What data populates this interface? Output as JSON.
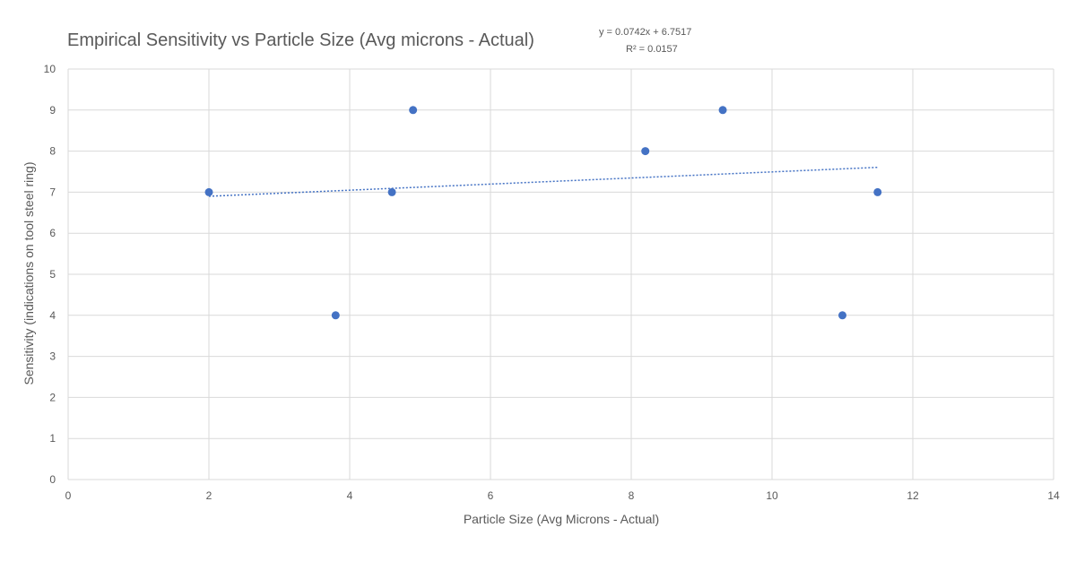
{
  "chart_data": {
    "type": "scatter",
    "title": "Empirical Sensitivity vs Particle Size (Avg microns - Actual)",
    "xlabel": "Particle Size (Avg Microns - Actual)",
    "ylabel": "Sensitivity (indications on tool steel ring)",
    "xlim": [
      0,
      14
    ],
    "ylim": [
      0,
      10
    ],
    "x_ticks": [
      0,
      2,
      4,
      6,
      8,
      10,
      12,
      14
    ],
    "y_ticks": [
      0,
      1,
      2,
      3,
      4,
      5,
      6,
      7,
      8,
      9,
      10
    ],
    "grid": true,
    "point_color": "#4472c4",
    "points": [
      {
        "x": 2.0,
        "y": 7
      },
      {
        "x": 3.8,
        "y": 4
      },
      {
        "x": 4.6,
        "y": 7
      },
      {
        "x": 4.9,
        "y": 9
      },
      {
        "x": 8.2,
        "y": 8
      },
      {
        "x": 9.3,
        "y": 9
      },
      {
        "x": 11.0,
        "y": 4
      },
      {
        "x": 11.5,
        "y": 7
      }
    ],
    "trendline": {
      "slope": 0.0742,
      "intercept": 6.7517,
      "x_range": [
        2.0,
        11.5
      ],
      "equation": "y = 0.0742x + 6.7517",
      "r_squared": "R² = 0.0157"
    }
  }
}
